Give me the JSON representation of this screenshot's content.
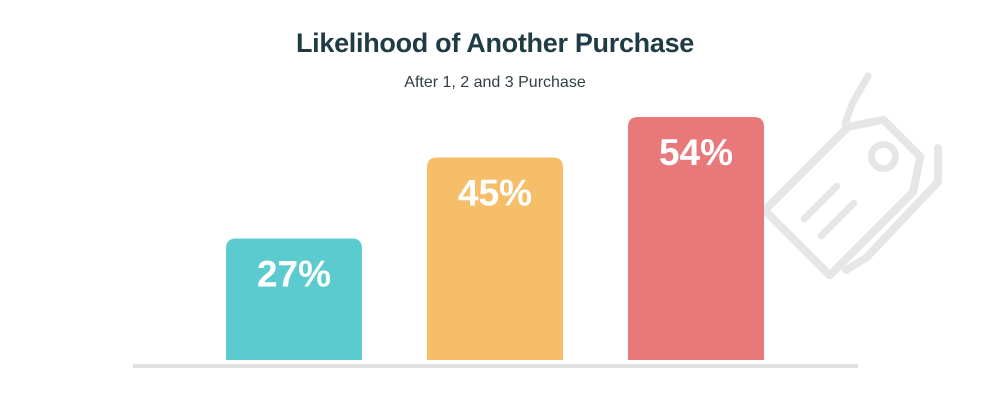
{
  "chart_data": {
    "type": "bar",
    "title": "Likelihood of Another Purchase",
    "subtitle": "After 1, 2 and 3 Purchase",
    "categories": [
      "",
      "",
      ""
    ],
    "values": [
      27,
      45,
      54
    ],
    "value_labels": [
      "27%",
      "45%",
      "54%"
    ],
    "ylim": [
      0,
      60
    ],
    "grid": false,
    "colors": [
      "#5ccbcf",
      "#f6be68",
      "#e8787a"
    ],
    "baseline_color": "#e0e0e0",
    "decoration_icon": "price-tag-icon",
    "decoration_color": "#e6e6e6"
  }
}
